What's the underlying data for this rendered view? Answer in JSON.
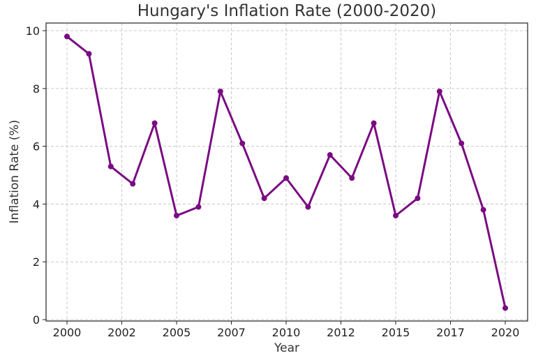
{
  "chart_data": {
    "type": "line",
    "title": "Hungary's Inflation Rate (2000-2020)",
    "xlabel": "Year",
    "ylabel": "Inflation Rate (%)",
    "x_tick_labels": [
      "2000",
      "2002",
      "2005",
      "2007",
      "2010",
      "2012",
      "2015",
      "2017",
      "2020"
    ],
    "y_tick_labels": [
      "0",
      "2",
      "4",
      "6",
      "8",
      "10"
    ],
    "ylim": [
      0,
      10.3
    ],
    "grid": true,
    "legend": "none",
    "colors": {
      "line": "#7a0a82"
    },
    "series": [
      {
        "x": [
          2000,
          2001,
          2002,
          2003,
          2004,
          2005,
          2006,
          2007,
          2008,
          2009,
          2010,
          2011,
          2012,
          2013,
          2014,
          2015,
          2016,
          2017,
          2018,
          2019,
          2020
        ],
        "values": [
          9.8,
          9.2,
          5.3,
          4.7,
          6.8,
          3.6,
          3.9,
          7.9,
          6.1,
          4.2,
          4.9,
          3.9,
          5.7,
          4.9,
          6.8,
          3.6,
          4.2,
          7.9,
          6.1,
          3.8,
          0.4
        ]
      }
    ]
  }
}
